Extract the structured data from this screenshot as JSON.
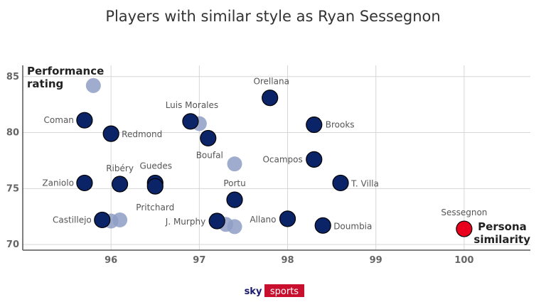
{
  "chart_data": {
    "type": "scatter",
    "title": "Players with similar style as Ryan Sessegnon",
    "xlabel": "Persona similarity",
    "ylabel": "Performance rating",
    "xlim": [
      95.0,
      100.75
    ],
    "ylim": [
      69.5,
      86.0
    ],
    "x_ticks": [
      96,
      97,
      98,
      99,
      100
    ],
    "y_ticks": [
      70,
      75,
      80,
      85
    ],
    "grid": true,
    "colors": {
      "player": "#0b2467",
      "secondary": "#8e9dc4",
      "highlight": "#e8001c"
    },
    "series": [
      {
        "points": [
          {
            "label": "Orellana",
            "x": 97.8,
            "y": 83.1
          },
          {
            "label": "Coman",
            "x": 95.7,
            "y": 81.1
          },
          {
            "label": "Redmond",
            "x": 96.0,
            "y": 79.9
          },
          {
            "label": "Luis Morales",
            "x": 96.9,
            "y": 81.0
          },
          {
            "label": "Boufal",
            "x": 97.1,
            "y": 79.5
          },
          {
            "label": "Brooks",
            "x": 98.3,
            "y": 80.7
          },
          {
            "label": "Ocampos",
            "x": 98.3,
            "y": 77.6
          },
          {
            "label": "Zaniolo",
            "x": 95.7,
            "y": 75.5
          },
          {
            "label": "Ribéry",
            "x": 96.1,
            "y": 75.4
          },
          {
            "label": "Guedes",
            "x": 96.5,
            "y": 75.5
          },
          {
            "label": "Pritchard",
            "x": 96.5,
            "y": 75.2
          },
          {
            "label": "Portu",
            "x": 97.4,
            "y": 74.0
          },
          {
            "label": "T. Villa",
            "x": 98.6,
            "y": 75.5
          },
          {
            "label": "Castillejo",
            "x": 95.9,
            "y": 72.2
          },
          {
            "label": "J. Murphy",
            "x": 97.2,
            "y": 72.1
          },
          {
            "label": "Allano",
            "x": 98.0,
            "y": 72.3
          },
          {
            "label": "Doumbia",
            "x": 98.4,
            "y": 71.7
          }
        ]
      },
      {
        "points": [
          {
            "x": 95.8,
            "y": 84.2
          },
          {
            "x": 97.0,
            "y": 80.8
          },
          {
            "x": 97.4,
            "y": 77.2
          },
          {
            "x": 96.0,
            "y": 72.1
          },
          {
            "x": 96.1,
            "y": 72.2
          },
          {
            "x": 97.3,
            "y": 71.8
          },
          {
            "x": 97.4,
            "y": 71.6
          }
        ]
      },
      {
        "points": [
          {
            "label": "Sessegnon",
            "x": 100.0,
            "y": 71.4
          }
        ]
      }
    ],
    "source_logo": {
      "part1": "sky",
      "part2": "sports"
    }
  }
}
